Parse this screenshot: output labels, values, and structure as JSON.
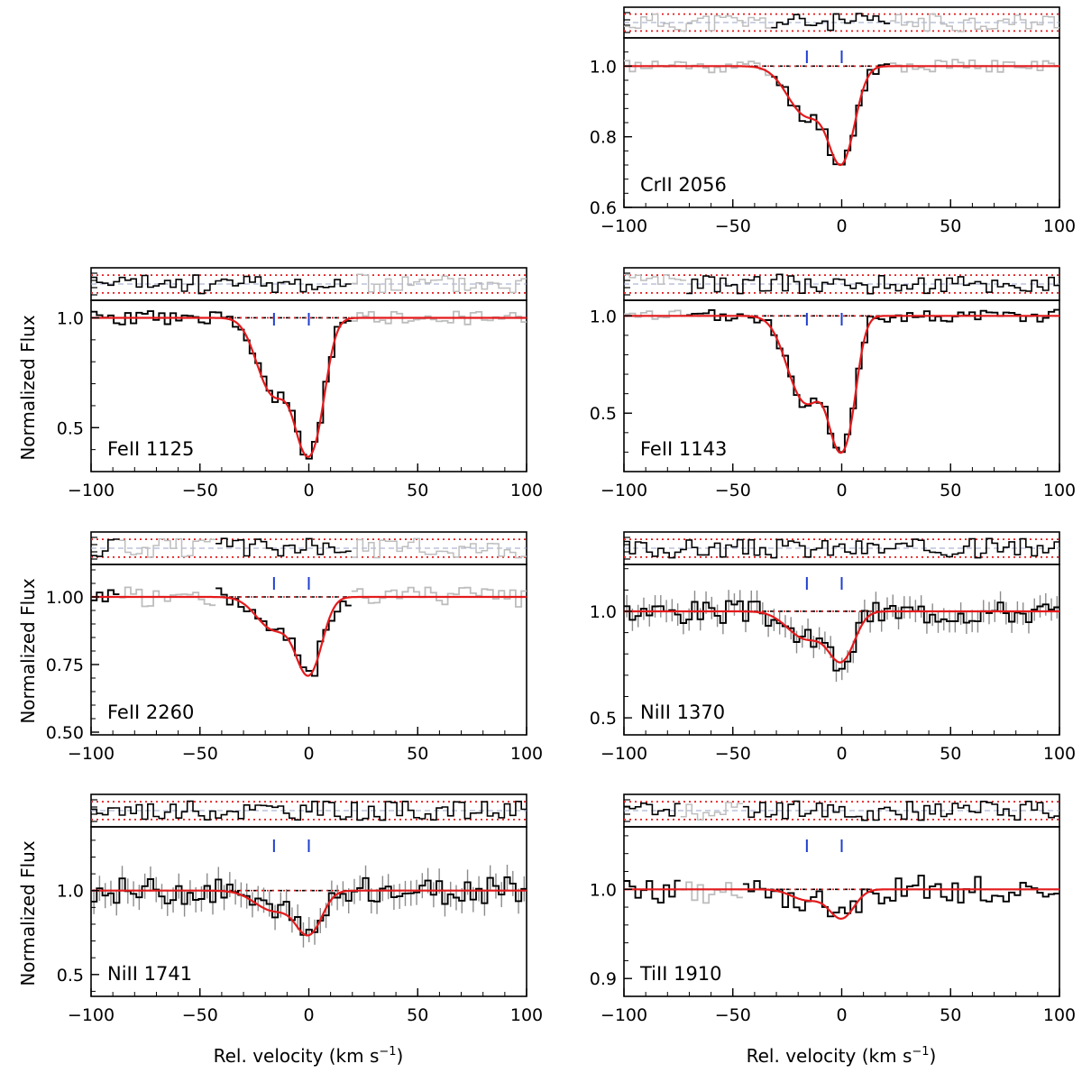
{
  "figure": {
    "ylabel": "Normalized Flux",
    "xlabel": "Rel. velocity  (km s",
    "xlabel_unit_sup": "−1",
    "xlabel_close": ")"
  },
  "colors": {
    "data": "#000000",
    "masked": "#bdbdbd",
    "fit": "#e41a1c",
    "component_ticks": "#1f3fd1",
    "continuum": "#000000",
    "residual_band": "#e41a1c",
    "residual_zero": "#9aa6c8"
  },
  "chart_data": [
    {
      "type": "line",
      "ion": "CrII 2056",
      "xlim": [
        -100,
        100
      ],
      "ylim": [
        0.6,
        1.08
      ],
      "yticks": [
        0.6,
        0.8,
        1.0
      ],
      "ytick_labels": [
        "0.6",
        "0.8",
        "1.0"
      ],
      "xticks": [
        -100,
        -50,
        0,
        50,
        100
      ],
      "xtick_labels": [
        "−100",
        "−50",
        "0",
        "50",
        "100"
      ],
      "components_kms": [
        -16,
        0
      ],
      "fit": {
        "centers": [
          -16,
          0
        ],
        "b": [
          12,
          8
        ],
        "depth": [
          0.14,
          0.26
        ]
      },
      "data_range": [
        -32,
        22
      ],
      "noise": 0.012,
      "masked_ranges": [
        [
          -100,
          -72
        ],
        [
          68,
          92
        ]
      ],
      "seed": 11,
      "show_ylabel": false,
      "show_xlabel": false
    },
    {
      "type": "line",
      "ion": "FeII 1125",
      "xlim": [
        -100,
        100
      ],
      "ylim": [
        0.3,
        1.08
      ],
      "yticks": [
        0.5,
        1.0
      ],
      "ytick_labels": [
        "0.5",
        "1.0"
      ],
      "xticks": [
        -100,
        -50,
        0,
        50,
        100
      ],
      "xtick_labels": [
        "−100",
        "−50",
        "0",
        "50",
        "100"
      ],
      "components_kms": [
        -16,
        0
      ],
      "fit": {
        "centers": [
          -16,
          0
        ],
        "b": [
          10,
          8
        ],
        "depth": [
          0.35,
          0.62
        ]
      },
      "data_range": [
        -100,
        20
      ],
      "noise": 0.02,
      "masked_ranges": [
        [
          20,
          100
        ]
      ],
      "seed": 23,
      "show_ylabel": true,
      "show_xlabel": false
    },
    {
      "type": "line",
      "ion": "FeII 1143",
      "xlim": [
        -100,
        100
      ],
      "ylim": [
        0.2,
        1.08
      ],
      "yticks": [
        0.5,
        1.0
      ],
      "ytick_labels": [
        "0.5",
        "1.0"
      ],
      "xticks": [
        -100,
        -50,
        0,
        50,
        100
      ],
      "xtick_labels": [
        "−100",
        "−50",
        "0",
        "50",
        "100"
      ],
      "components_kms": [
        -16,
        0
      ],
      "fit": {
        "centers": [
          -16,
          0
        ],
        "b": [
          11,
          7
        ],
        "depth": [
          0.45,
          0.68
        ]
      },
      "data_range": [
        -72,
        100
      ],
      "noise": 0.02,
      "masked_ranges": [
        [
          -100,
          -72
        ]
      ],
      "seed": 37,
      "show_ylabel": false,
      "show_xlabel": false
    },
    {
      "type": "line",
      "ion": "FeII 2260",
      "xlim": [
        -100,
        100
      ],
      "ylim": [
        0.49,
        1.12
      ],
      "yticks": [
        0.5,
        0.75,
        1.0
      ],
      "ytick_labels": [
        "0.50",
        "0.75",
        "1.00"
      ],
      "xticks": [
        -100,
        -50,
        0,
        50,
        100
      ],
      "xtick_labels": [
        "−100",
        "−50",
        "0",
        "50",
        "100"
      ],
      "components_kms": [
        -16,
        0
      ],
      "fit": {
        "centers": [
          -16,
          0
        ],
        "b": [
          11,
          8
        ],
        "depth": [
          0.12,
          0.28
        ]
      },
      "data_range": [
        -100,
        20
      ],
      "noise": 0.025,
      "masked_ranges": [
        [
          -86,
          -42
        ],
        [
          20,
          100
        ]
      ],
      "seed": 51,
      "show_ylabel": true,
      "show_xlabel": false
    },
    {
      "type": "line",
      "ion": "NiII 1370",
      "xlim": [
        -100,
        100
      ],
      "ylim": [
        0.42,
        1.22
      ],
      "yticks": [
        0.5,
        1.0
      ],
      "ytick_labels": [
        "0.5",
        "1.0"
      ],
      "xticks": [
        -100,
        -50,
        0,
        50,
        100
      ],
      "xtick_labels": [
        "−100",
        "−50",
        "0",
        "50",
        "100"
      ],
      "components_kms": [
        -16,
        0
      ],
      "fit": {
        "centers": [
          -16,
          0
        ],
        "b": [
          12,
          8
        ],
        "depth": [
          0.13,
          0.22
        ]
      },
      "data_range": [
        -100,
        100
      ],
      "noise": 0.035,
      "masked_ranges": [],
      "seed": 67,
      "show_ylabel": false,
      "show_xlabel": false
    },
    {
      "type": "line",
      "ion": "NiII 1741",
      "xlim": [
        -100,
        100
      ],
      "ylim": [
        0.37,
        1.38
      ],
      "yticks": [
        0.5,
        1.0
      ],
      "ytick_labels": [
        "0.5",
        "1.0"
      ],
      "xticks": [
        -100,
        -50,
        0,
        50,
        100
      ],
      "xtick_labels": [
        "−100",
        "−50",
        "0",
        "50",
        "100"
      ],
      "components_kms": [
        -16,
        0
      ],
      "fit": {
        "centers": [
          -16,
          0
        ],
        "b": [
          12,
          8
        ],
        "depth": [
          0.12,
          0.25
        ]
      },
      "data_range": [
        -100,
        100
      ],
      "noise": 0.05,
      "masked_ranges": [],
      "seed": 83,
      "show_ylabel": true,
      "show_xlabel": true
    },
    {
      "type": "line",
      "ion": "TiII 1910",
      "xlim": [
        -100,
        100
      ],
      "ylim": [
        0.88,
        1.07
      ],
      "yticks": [
        0.9,
        1.0
      ],
      "ytick_labels": [
        "0.9",
        "1.0"
      ],
      "xticks": [
        -100,
        -50,
        0,
        50,
        100
      ],
      "xtick_labels": [
        "−100",
        "−50",
        "0",
        "50",
        "100"
      ],
      "components_kms": [
        -16,
        0
      ],
      "fit": {
        "centers": [
          -16,
          0
        ],
        "b": [
          10,
          8
        ],
        "depth": [
          0.012,
          0.032
        ]
      },
      "data_range": [
        -100,
        100
      ],
      "noise": 0.01,
      "masked_ranges": [
        [
          -75,
          -45
        ]
      ],
      "seed": 97,
      "show_ylabel": false,
      "show_xlabel": true
    }
  ]
}
